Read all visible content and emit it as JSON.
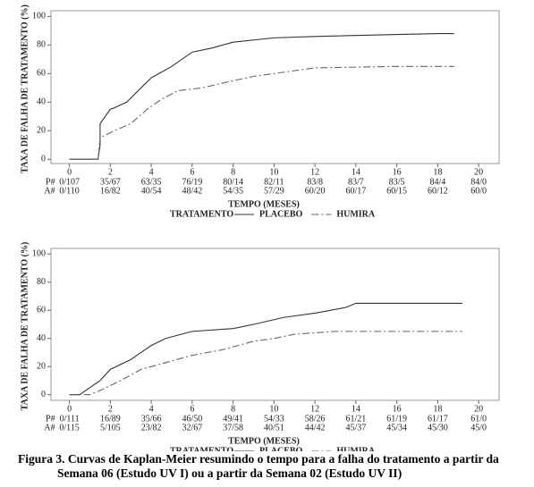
{
  "chart_data": [
    {
      "type": "line",
      "ylabel": "TAXA DE FALHA DE TRATAMENTO (%)",
      "xlabel": "TEMPO (MESES)",
      "xlim": [
        -0.9,
        21
      ],
      "ylim": [
        -3,
        104
      ],
      "xticks": [
        0,
        2,
        4,
        6,
        8,
        10,
        12,
        14,
        16,
        18,
        20
      ],
      "yticks": [
        0,
        20,
        40,
        60,
        80,
        100
      ],
      "legend_title": "TRATAMENTO",
      "series": [
        {
          "name": "PLACEBO",
          "color": "#333333",
          "dash": "none",
          "x": [
            0,
            1.4,
            1.5,
            1.5,
            2,
            2.2,
            2.8,
            3.5,
            4,
            5,
            6,
            7,
            8,
            10,
            12,
            18,
            18.8
          ],
          "values": [
            0,
            0,
            10,
            25,
            35,
            36,
            40,
            50,
            57,
            65,
            75,
            78,
            82,
            85,
            86,
            88,
            88
          ]
        },
        {
          "name": "HUMIRA",
          "color": "#666666",
          "dash": "8,3,2,3",
          "x": [
            0,
            1.4,
            1.5,
            2.2,
            3,
            3.8,
            4.5,
            5.3,
            6.5,
            8,
            9,
            10,
            11,
            12,
            16,
            18.8
          ],
          "values": [
            0,
            0,
            15,
            20,
            25,
            35,
            42,
            48,
            50,
            55,
            58,
            60,
            62,
            64,
            65,
            65
          ]
        }
      ],
      "risk_table": [
        {
          "name": "P#",
          "values": [
            "0/107",
            "35/67",
            "63/35",
            "76/19",
            "80/14",
            "82/11",
            "83/8",
            "83/7",
            "83/5",
            "84/4",
            "84/0"
          ]
        },
        {
          "name": "A#",
          "values": [
            "0/110",
            "16/82",
            "40/54",
            "48/42",
            "54/35",
            "57/29",
            "60/20",
            "60/17",
            "60/15",
            "60/12",
            "60/0"
          ]
        }
      ]
    },
    {
      "type": "line",
      "ylabel": "TAXA DE FALHA DE TRATAMENTO (%)",
      "xlabel": "TEMPO (MESES)",
      "xlim": [
        -0.9,
        21
      ],
      "ylim": [
        -4,
        104
      ],
      "xticks": [
        0,
        2,
        4,
        6,
        8,
        10,
        12,
        14,
        16,
        18,
        20
      ],
      "yticks": [
        0,
        20,
        40,
        60,
        80,
        100
      ],
      "legend_title": "TRATAMENTO",
      "series": [
        {
          "name": "PLACEBO",
          "color": "#333333",
          "dash": "none",
          "x": [
            0,
            0.5,
            1,
            1.5,
            2,
            3,
            3.5,
            4,
            4.7,
            6,
            8,
            9,
            10.5,
            12,
            13.5,
            14,
            19.2
          ],
          "values": [
            0,
            0,
            5,
            10,
            18,
            25,
            30,
            35,
            40,
            45,
            47,
            50,
            55,
            58,
            62,
            65,
            65
          ]
        },
        {
          "name": "HUMIRA",
          "color": "#666666",
          "dash": "8,3,2,3",
          "x": [
            0,
            1,
            1.5,
            2.5,
            3.5,
            4.5,
            6,
            7.5,
            9,
            10,
            11,
            13,
            19.2
          ],
          "values": [
            0,
            0,
            3,
            10,
            18,
            22,
            28,
            32,
            38,
            40,
            43,
            45,
            45
          ]
        }
      ],
      "risk_table": [
        {
          "name": "P#",
          "values": [
            "0/111",
            "16/89",
            "35/66",
            "46/50",
            "49/41",
            "54/33",
            "58/26",
            "61/21",
            "61/19",
            "61/17",
            "61/0"
          ]
        },
        {
          "name": "A#",
          "values": [
            "0/115",
            "5/105",
            "23/82",
            "32/67",
            "37/58",
            "40/51",
            "44/42",
            "45/37",
            "45/34",
            "45/30",
            "45/0"
          ]
        }
      ]
    }
  ],
  "caption": "Figura 3. Curvas de Kaplan-Meier resumindo o tempo para a falha do tratamento a partir da Semana 06 (Estudo UV I) ou a partir da Semana 02 (Estudo UV II)"
}
